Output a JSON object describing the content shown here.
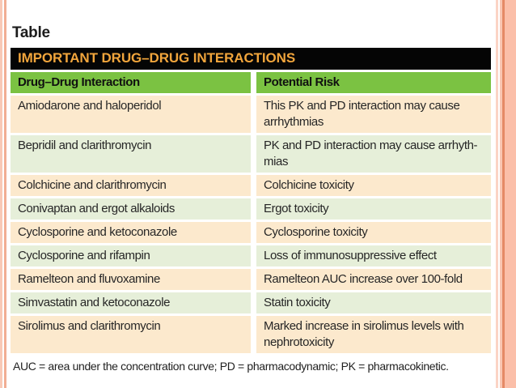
{
  "page": {
    "label": "Table"
  },
  "banner": {
    "title": "IMPORTANT DRUG–DRUG INTERACTIONS",
    "bg_color": "#050505",
    "text_color": "#f1a53c"
  },
  "table": {
    "columns": [
      "Drug–Drug Interaction",
      "Potential Risk"
    ],
    "header_bg_color": "#7bc242",
    "row_colors": {
      "odd": "#fce9cd",
      "even": "#e6efd9"
    },
    "rows": [
      {
        "drug": "Amiodarone and haloperidol",
        "risk": "This PK and PD interaction may cause arrhythmias"
      },
      {
        "drug": "Bepridil and clarithromycin",
        "risk": "PK and PD interaction may cause arrhyth-mias"
      },
      {
        "drug": "Colchicine and clarithromycin",
        "risk": "Colchicine toxicity"
      },
      {
        "drug": "Conivaptan and ergot alkaloids",
        "risk": "Ergot toxicity"
      },
      {
        "drug": "Cyclosporine and ketoconazole",
        "risk": "Cyclosporine toxicity"
      },
      {
        "drug": "Cyclosporine and rifampin",
        "risk": "Loss of immunosuppressive effect"
      },
      {
        "drug": "Ramelteon and fluvoxamine",
        "risk": "Ramelteon AUC increase over 100-fold"
      },
      {
        "drug": "Simvastatin and ketoconazole",
        "risk": "Statin toxicity"
      },
      {
        "drug": "Sirolimus and clarithromycin",
        "risk": "Marked increase in sirolimus levels with nephrotoxicity"
      }
    ],
    "footnote": "AUC = area under the concentration curve; PD = pharmacodynamic; PK = pharmacokinetic."
  },
  "frame": {
    "left_stripe_color": "#f1ad93",
    "right_stripe_color": "#fbbfa9",
    "right_accent_line_color": "#e58a66"
  }
}
